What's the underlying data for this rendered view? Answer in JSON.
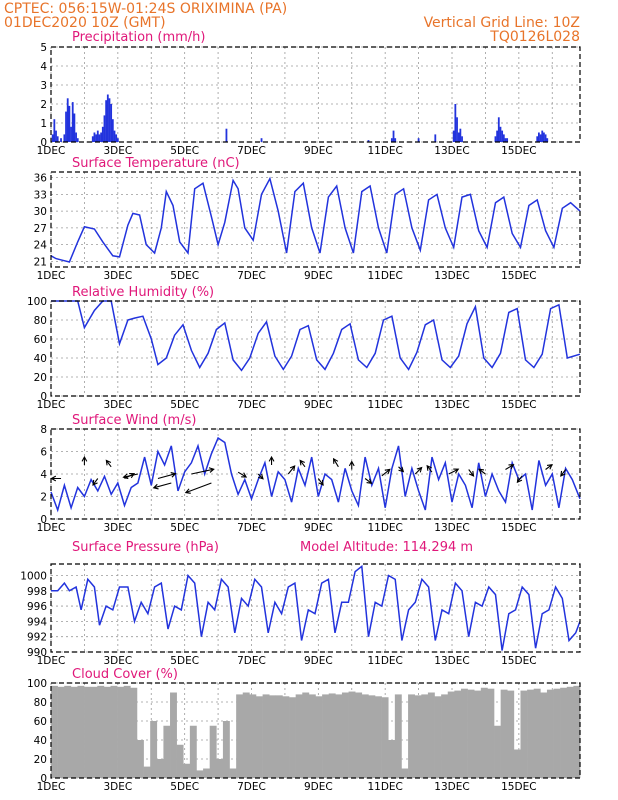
{
  "header": {
    "line1_left": "CPTEC:   056:15W-01:24S   ORIXIMINA (PA)",
    "line2_left": "01DEC2020 10Z (GMT)",
    "line1_right": "Vertical Grid Line: 10Z",
    "line2_right": "TQ0126L028"
  },
  "x_axis": {
    "days": 15.83,
    "tick_labels": [
      "1DEC",
      "3DEC",
      "5DEC",
      "7DEC",
      "9DEC",
      "11DEC",
      "13DEC",
      "15DEC"
    ],
    "tick_days": [
      0,
      2,
      4,
      6,
      8,
      10,
      12,
      14
    ],
    "grid_days": [
      0,
      1,
      2,
      3,
      4,
      5,
      6,
      7,
      8,
      9,
      10,
      11,
      12,
      13,
      14,
      15
    ]
  },
  "colors": {
    "title": "#e0187a",
    "header": "#e8742a",
    "series": "#2233dd",
    "cloud": "#a8a8a8"
  },
  "chart_data": [
    {
      "type": "bar",
      "title": "Precipitation (mm/h)",
      "ylim": [
        0,
        5
      ],
      "yticks": [
        "0",
        "1",
        "2",
        "3",
        "4",
        "5"
      ],
      "x": [
        0.05,
        0.1,
        0.15,
        0.2,
        0.3,
        0.4,
        0.45,
        0.5,
        0.55,
        0.6,
        0.65,
        0.7,
        0.75,
        0.8,
        1.25,
        1.3,
        1.35,
        1.4,
        1.45,
        1.5,
        1.55,
        1.6,
        1.65,
        1.7,
        1.75,
        1.8,
        1.85,
        1.9,
        1.95,
        2.0,
        5.25,
        6.3,
        9.5,
        10.2,
        10.25,
        10.3,
        11.0,
        11.5,
        12.05,
        12.1,
        12.15,
        12.2,
        12.25,
        12.3,
        13.3,
        13.35,
        13.4,
        13.45,
        13.5,
        13.55,
        13.6,
        13.65,
        14.55,
        14.6,
        14.65,
        14.7,
        14.75,
        14.8,
        14.85
      ],
      "values": [
        0.4,
        1.2,
        0.6,
        0.3,
        0.2,
        0.4,
        1.6,
        2.3,
        1.9,
        0.8,
        2.1,
        1.5,
        0.5,
        0.2,
        0.3,
        0.5,
        0.4,
        0.6,
        0.4,
        0.5,
        0.8,
        1.4,
        2.2,
        2.5,
        2.3,
        2.0,
        1.2,
        0.6,
        0.4,
        0.2,
        0.7,
        0.2,
        0.1,
        0.2,
        0.6,
        0.2,
        0.2,
        0.4,
        0.6,
        2.0,
        1.3,
        0.5,
        0.7,
        0.3,
        0.3,
        0.6,
        1.3,
        0.8,
        0.6,
        0.4,
        0.2,
        0.2,
        0.3,
        0.5,
        0.4,
        0.6,
        0.5,
        0.4,
        0.2
      ]
    },
    {
      "type": "line",
      "title": "Surface Temperature (nC)",
      "ylim": [
        20,
        37
      ],
      "yticks": [
        "21",
        "24",
        "27",
        "30",
        "33",
        "36"
      ],
      "ytick_values": [
        21,
        24,
        27,
        30,
        33,
        36
      ],
      "x": [
        0,
        0.15,
        0.35,
        0.55,
        0.8,
        1.0,
        1.3,
        1.55,
        1.85,
        2.05,
        2.3,
        2.45,
        2.65,
        2.85,
        3.1,
        3.3,
        3.45,
        3.65,
        3.85,
        4.1,
        4.3,
        4.55,
        4.8,
        5.0,
        5.2,
        5.45,
        5.6,
        5.8,
        6.05,
        6.3,
        6.55,
        6.8,
        7.05,
        7.3,
        7.55,
        7.8,
        8.05,
        8.3,
        8.55,
        8.8,
        9.05,
        9.3,
        9.55,
        9.8,
        10.05,
        10.3,
        10.55,
        10.8,
        11.05,
        11.3,
        11.55,
        11.8,
        12.05,
        12.3,
        12.55,
        12.8,
        13.05,
        13.3,
        13.55,
        13.8,
        14.05,
        14.3,
        14.55,
        14.8,
        15.05,
        15.3,
        15.55,
        15.83
      ],
      "values": [
        22.0,
        21.5,
        21.2,
        20.9,
        24.5,
        27.2,
        26.8,
        24.5,
        22.0,
        21.8,
        27.5,
        29.6,
        29.3,
        24.0,
        22.5,
        27.0,
        33.5,
        31.0,
        24.5,
        22.5,
        34.0,
        35.0,
        29.0,
        24.0,
        28.0,
        35.5,
        34.0,
        27.0,
        24.8,
        33.0,
        35.8,
        30.0,
        22.5,
        33.5,
        35.0,
        27.0,
        22.5,
        32.5,
        34.5,
        27.0,
        22.5,
        33.5,
        34.5,
        27.0,
        22.5,
        33.0,
        34.0,
        27.0,
        23.0,
        32.0,
        33.0,
        27.0,
        23.5,
        32.5,
        33.0,
        26.5,
        23.5,
        31.5,
        32.5,
        26.0,
        23.5,
        31.0,
        32.0,
        26.5,
        23.5,
        30.5,
        31.5,
        30.0
      ]
    },
    {
      "type": "line",
      "title": "Relative Humidity (%)",
      "ylim": [
        0,
        100
      ],
      "yticks": [
        "0",
        "20",
        "40",
        "60",
        "80",
        "100"
      ],
      "ytick_values": [
        0,
        20,
        40,
        60,
        80,
        100
      ],
      "x": [
        0,
        0.3,
        0.55,
        0.8,
        1.0,
        1.3,
        1.55,
        1.8,
        2.05,
        2.3,
        2.5,
        2.75,
        3.0,
        3.2,
        3.45,
        3.7,
        3.95,
        4.2,
        4.45,
        4.7,
        4.95,
        5.2,
        5.45,
        5.7,
        5.95,
        6.2,
        6.45,
        6.7,
        6.95,
        7.2,
        7.45,
        7.7,
        7.95,
        8.2,
        8.45,
        8.7,
        8.95,
        9.2,
        9.45,
        9.7,
        9.95,
        10.2,
        10.45,
        10.7,
        10.95,
        11.2,
        11.45,
        11.7,
        11.95,
        12.2,
        12.45,
        12.7,
        12.95,
        13.2,
        13.45,
        13.7,
        13.95,
        14.2,
        14.45,
        14.7,
        14.95,
        15.2,
        15.45,
        15.83
      ],
      "values": [
        100,
        100,
        100,
        100,
        72,
        90,
        100,
        100,
        55,
        80,
        82,
        84,
        60,
        33,
        40,
        64,
        75,
        48,
        30,
        45,
        70,
        77,
        38,
        27,
        40,
        66,
        78,
        42,
        28,
        42,
        70,
        74,
        38,
        28,
        45,
        70,
        76,
        38,
        30,
        45,
        80,
        84,
        40,
        28,
        46,
        75,
        80,
        38,
        30,
        42,
        76,
        94,
        40,
        30,
        45,
        88,
        92,
        38,
        30,
        44,
        92,
        96,
        40,
        44
      ]
    },
    {
      "type": "line",
      "title": "Surface Wind (m/s)",
      "ylim": [
        0,
        8
      ],
      "yticks": [
        "0",
        "2",
        "4",
        "6",
        "8"
      ],
      "ytick_values": [
        0,
        2,
        4,
        6,
        8
      ],
      "x": [
        0,
        0.2,
        0.4,
        0.6,
        0.8,
        1.0,
        1.2,
        1.4,
        1.6,
        1.8,
        2.0,
        2.2,
        2.4,
        2.6,
        2.8,
        3.0,
        3.2,
        3.4,
        3.6,
        3.8,
        4.0,
        4.2,
        4.4,
        4.6,
        4.8,
        5.0,
        5.2,
        5.4,
        5.6,
        5.8,
        6.0,
        6.2,
        6.4,
        6.6,
        6.8,
        7.0,
        7.2,
        7.4,
        7.6,
        7.8,
        8.0,
        8.2,
        8.4,
        8.6,
        8.8,
        9.0,
        9.2,
        9.4,
        9.6,
        9.8,
        10.0,
        10.2,
        10.4,
        10.6,
        10.8,
        11.0,
        11.2,
        11.4,
        11.6,
        11.8,
        12.0,
        12.2,
        12.4,
        12.6,
        12.8,
        13.0,
        13.2,
        13.4,
        13.6,
        13.8,
        14.0,
        14.2,
        14.4,
        14.6,
        14.8,
        15.0,
        15.2,
        15.4,
        15.6,
        15.83
      ],
      "values": [
        2.4,
        0.8,
        3.0,
        1.0,
        2.8,
        2.0,
        3.5,
        2.5,
        3.8,
        2.2,
        3.2,
        1.2,
        2.8,
        3.2,
        5.5,
        3.0,
        6.0,
        4.8,
        6.5,
        2.5,
        4.2,
        5.0,
        6.5,
        4.0,
        5.8,
        7.2,
        6.8,
        4.0,
        2.2,
        3.5,
        1.8,
        3.5,
        5.0,
        2.0,
        4.2,
        3.5,
        1.5,
        4.5,
        3.0,
        5.5,
        2.0,
        4.0,
        3.5,
        1.5,
        4.5,
        2.5,
        1.2,
        5.5,
        3.0,
        4.5,
        1.0,
        4.5,
        6.5,
        2.0,
        4.5,
        2.5,
        0.8,
        5.5,
        3.5,
        5.0,
        1.5,
        4.0,
        3.0,
        1.0,
        5.0,
        2.0,
        4.0,
        2.5,
        1.5,
        5.0,
        3.5,
        4.0,
        0.8,
        5.2,
        3.0,
        4.0,
        1.0,
        4.5,
        3.5,
        1.8
      ]
    },
    {
      "type": "line",
      "title": "Surface Pressure (hPa)",
      "annotation": "Model Altitude: 114.294 m",
      "ylim": [
        990,
        1001.5
      ],
      "yticks": [
        "990",
        "992",
        "994",
        "996",
        "998",
        "1000"
      ],
      "ytick_values": [
        990,
        992,
        994,
        996,
        998,
        1000
      ],
      "x": [
        0,
        0.2,
        0.4,
        0.55,
        0.75,
        0.9,
        1.1,
        1.3,
        1.45,
        1.65,
        1.85,
        2.05,
        2.3,
        2.5,
        2.7,
        2.9,
        3.1,
        3.3,
        3.5,
        3.7,
        3.9,
        4.1,
        4.3,
        4.5,
        4.7,
        4.9,
        5.1,
        5.3,
        5.5,
        5.7,
        5.9,
        6.1,
        6.3,
        6.5,
        6.7,
        6.9,
        7.1,
        7.3,
        7.5,
        7.7,
        7.9,
        8.1,
        8.3,
        8.5,
        8.7,
        8.9,
        9.1,
        9.3,
        9.5,
        9.7,
        9.9,
        10.1,
        10.3,
        10.5,
        10.7,
        10.9,
        11.1,
        11.3,
        11.5,
        11.7,
        11.9,
        12.1,
        12.3,
        12.5,
        12.7,
        12.9,
        13.1,
        13.3,
        13.5,
        13.7,
        13.9,
        14.1,
        14.3,
        14.5,
        14.7,
        14.9,
        15.1,
        15.3,
        15.5,
        15.7,
        15.83
      ],
      "values": [
        998.0,
        998.0,
        999.0,
        998.0,
        998.5,
        995.5,
        999.5,
        998.5,
        993.5,
        996.0,
        995.5,
        998.5,
        998.5,
        994.0,
        996.5,
        995.0,
        998.5,
        999.0,
        993.0,
        996.0,
        995.5,
        1000.0,
        999.0,
        992.0,
        996.5,
        995.5,
        999.5,
        998.5,
        992.5,
        997.0,
        996.0,
        999.5,
        998.5,
        992.5,
        996.5,
        995.0,
        998.5,
        999.0,
        991.5,
        995.5,
        995.0,
        999.0,
        999.5,
        992.5,
        996.5,
        996.5,
        1000.5,
        1001.2,
        992.0,
        996.5,
        996.0,
        1000.0,
        999.5,
        991.5,
        995.5,
        996.5,
        999.5,
        998.5,
        991.5,
        995.5,
        995.0,
        999.0,
        998.0,
        992.0,
        996.5,
        996.0,
        998.5,
        997.5,
        990.2,
        995.0,
        995.5,
        998.5,
        997.5,
        990.5,
        995.0,
        995.5,
        998.5,
        997.0,
        991.5,
        992.5,
        994.0
      ]
    },
    {
      "type": "bar",
      "title": "Cloud Cover (%)",
      "ylim": [
        0,
        100
      ],
      "yticks": [
        "0",
        "20",
        "40",
        "60",
        "80",
        "100"
      ],
      "ytick_values": [
        0,
        20,
        40,
        60,
        80,
        100
      ],
      "x": [
        0.05,
        0.25,
        0.45,
        0.65,
        0.85,
        1.05,
        1.25,
        1.45,
        1.65,
        1.85,
        2.05,
        2.25,
        2.45,
        2.65,
        2.85,
        3.05,
        3.25,
        3.45,
        3.65,
        3.85,
        4.05,
        4.25,
        4.45,
        4.65,
        4.85,
        5.05,
        5.25,
        5.45,
        5.65,
        5.85,
        6.05,
        6.25,
        6.45,
        6.65,
        6.85,
        7.05,
        7.25,
        7.45,
        7.65,
        7.85,
        8.05,
        8.25,
        8.45,
        8.65,
        8.85,
        9.05,
        9.25,
        9.45,
        9.65,
        9.85,
        10.05,
        10.25,
        10.45,
        10.65,
        10.85,
        11.05,
        11.25,
        11.45,
        11.65,
        11.85,
        12.05,
        12.25,
        12.45,
        12.65,
        12.85,
        13.05,
        13.25,
        13.45,
        13.65,
        13.85,
        14.05,
        14.25,
        14.45,
        14.65,
        14.85,
        15.05,
        15.25,
        15.45,
        15.65,
        15.83
      ],
      "values": [
        97,
        96,
        97,
        96,
        97,
        96,
        96,
        97,
        96,
        97,
        96,
        97,
        95,
        40,
        12,
        60,
        20,
        55,
        90,
        35,
        15,
        55,
        8,
        10,
        55,
        20,
        60,
        10,
        88,
        90,
        88,
        86,
        88,
        87,
        87,
        86,
        85,
        88,
        90,
        88,
        86,
        88,
        89,
        88,
        90,
        91,
        90,
        88,
        87,
        86,
        85,
        40,
        88,
        10,
        88,
        87,
        88,
        90,
        86,
        88,
        91,
        92,
        94,
        93,
        92,
        95,
        94,
        55,
        93,
        92,
        30,
        92,
        93,
        94,
        90,
        93,
        94,
        95,
        96,
        97
      ]
    }
  ]
}
